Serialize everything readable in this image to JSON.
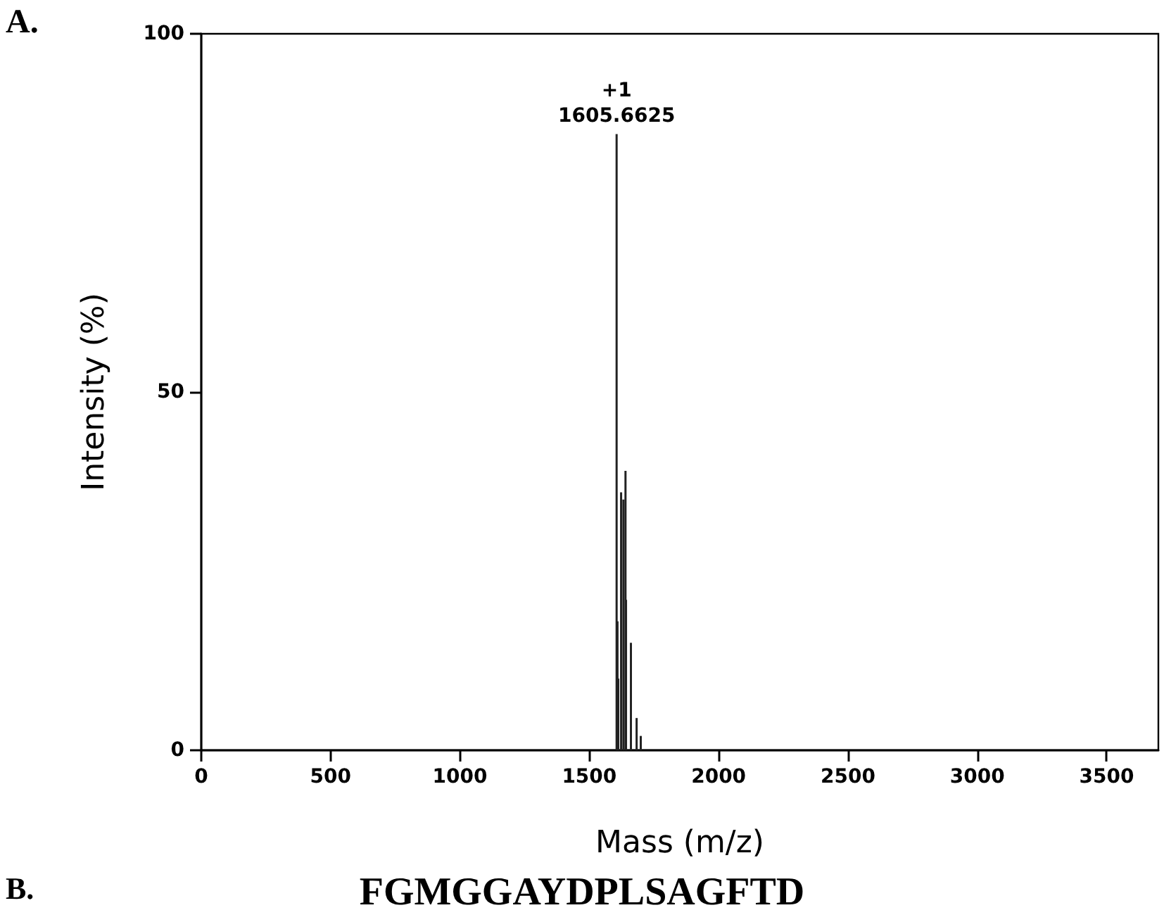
{
  "chart_data": {
    "type": "bar",
    "xlabel": "Mass (m/z)",
    "ylabel": "Intensity (%)",
    "x": [
      1605.6625,
      1609,
      1612,
      1623,
      1632,
      1640,
      1642,
      1661,
      1683,
      1699
    ],
    "values": [
      86,
      18,
      10,
      36,
      35,
      39,
      21,
      15,
      4.5,
      2
    ],
    "color": "#222222",
    "xlim": [
      0,
      3700
    ],
    "xticks": [
      0,
      500,
      1000,
      1500,
      2000,
      2500,
      3000,
      3500
    ],
    "ylim": [
      0,
      100
    ],
    "yticks": [
      0,
      50,
      100
    ],
    "grid": false,
    "annotations": [
      "A.",
      "B.",
      "FGMGGAYDPLSAGFTD",
      {
        "text": "+1\n1605.6625",
        "x": 1605.6625,
        "y": 86
      }
    ]
  }
}
